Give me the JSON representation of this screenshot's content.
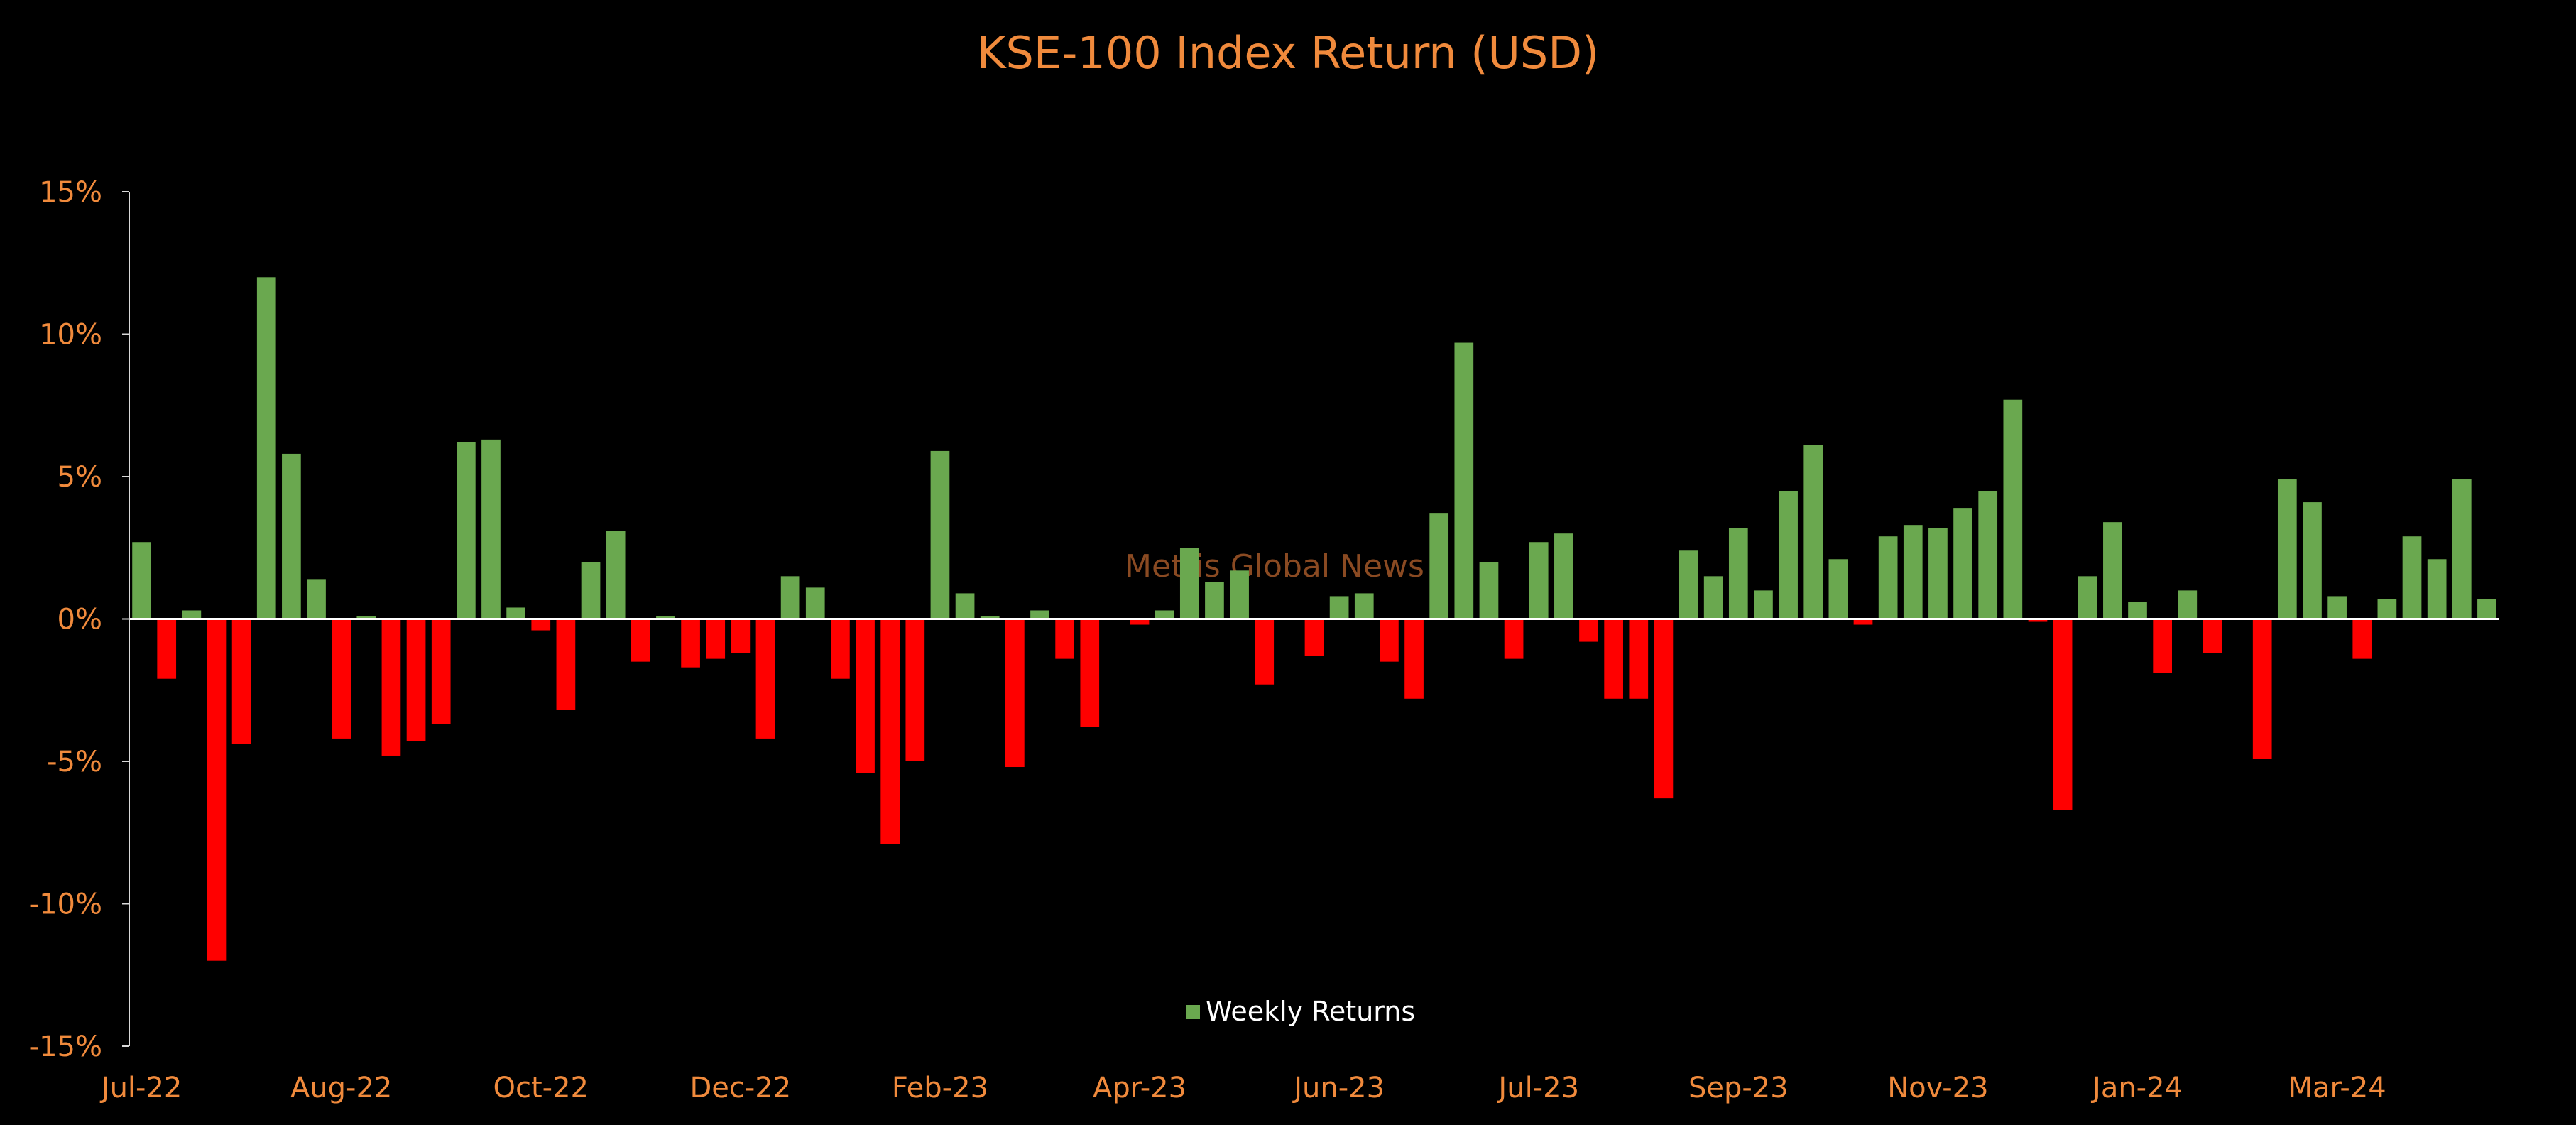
{
  "chart_data": {
    "type": "bar",
    "title": "KSE-100 Index Return (USD)",
    "xlabel": "",
    "ylabel": "",
    "ylim": [
      -0.15,
      0.15
    ],
    "yticks": [
      0.15,
      0.1,
      0.05,
      0.0,
      -0.05,
      -0.1,
      -0.15
    ],
    "ytick_labels": [
      "15%",
      "10%",
      "5%",
      "0%",
      "-5%",
      "-10%",
      "-15%"
    ],
    "xtick_labels": [
      "Jul-22",
      "Aug-22",
      "Oct-22",
      "Dec-22",
      "Feb-23",
      "Apr-23",
      "Jun-23",
      "Jul-23",
      "Sep-23",
      "Nov-23",
      "Jan-24",
      "Mar-24"
    ],
    "xtick_label_bar_index": [
      0,
      8,
      16,
      24,
      32,
      40,
      48,
      56,
      64,
      72,
      80,
      88
    ],
    "grid": false,
    "legend_position": "bottom-center",
    "colors": {
      "positive": "#6AA84F",
      "negative": "#FF0000",
      "text": "#F08A3C",
      "axis": "#D9D9D9",
      "zero_line": "#FFFFFF",
      "background": "#000000"
    },
    "series": [
      {
        "name": "Weekly Returns",
        "values": [
          0.027,
          -0.021,
          0.003,
          -0.12,
          -0.044,
          0.12,
          0.058,
          0.014,
          -0.042,
          0.001,
          -0.048,
          -0.043,
          -0.037,
          0.062,
          0.063,
          0.004,
          -0.004,
          -0.032,
          0.02,
          0.031,
          -0.015,
          0.001,
          -0.017,
          -0.014,
          -0.012,
          -0.042,
          0.015,
          0.011,
          -0.021,
          -0.054,
          -0.079,
          -0.05,
          0.059,
          0.009,
          0.001,
          -0.052,
          0.003,
          -0.014,
          -0.038,
          0.0,
          -0.002,
          0.003,
          0.025,
          0.013,
          0.017,
          -0.023,
          0.0,
          -0.013,
          0.008,
          0.009,
          -0.015,
          -0.028,
          0.037,
          0.097,
          0.02,
          -0.014,
          0.027,
          0.03,
          -0.008,
          -0.028,
          -0.028,
          -0.063,
          0.024,
          0.015,
          0.032,
          0.01,
          0.045,
          0.061,
          0.021,
          -0.002,
          0.029,
          0.033,
          0.032,
          0.039,
          0.045,
          0.077,
          -0.001,
          -0.067,
          0.015,
          0.034,
          0.006,
          -0.019,
          0.01,
          -0.012,
          0.0,
          -0.049,
          0.049,
          0.041,
          0.008,
          -0.014,
          0.007,
          0.029,
          0.021,
          0.049,
          0.007
        ]
      }
    ]
  },
  "legend": {
    "label": "Weekly Returns"
  },
  "watermark": {
    "text": "Mettis Global News"
  }
}
